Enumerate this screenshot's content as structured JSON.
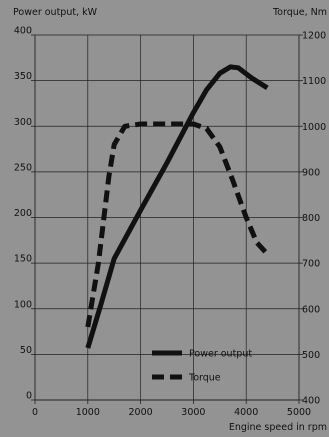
{
  "chart_data": {
    "type": "line",
    "left_axis_label": "Power output, kW",
    "right_axis_label": "Torque, Nm",
    "xlabel": "Engine speed in rpm",
    "xlim": [
      0,
      5000
    ],
    "ylim_left": [
      0,
      400
    ],
    "ylim_right": [
      400,
      1200
    ],
    "x_ticks": [
      0,
      1000,
      2000,
      3000,
      4000,
      5000
    ],
    "y_ticks_left": [
      0,
      50,
      100,
      150,
      200,
      250,
      300,
      350,
      400
    ],
    "y_ticks_right": [
      400,
      500,
      600,
      700,
      800,
      900,
      1000,
      1100,
      1200
    ],
    "grid": true,
    "legend_position": "bottom-center",
    "series": [
      {
        "name": "Power output",
        "axis": "left",
        "style": "solid",
        "color": "#111111",
        "points": [
          [
            1000,
            57
          ],
          [
            1250,
            105
          ],
          [
            1500,
            155
          ],
          [
            2000,
            208
          ],
          [
            2500,
            260
          ],
          [
            3000,
            315
          ],
          [
            3250,
            340
          ],
          [
            3500,
            358
          ],
          [
            3700,
            365
          ],
          [
            3850,
            364
          ],
          [
            4100,
            353
          ],
          [
            4400,
            342
          ]
        ]
      },
      {
        "name": "Torque",
        "axis": "right",
        "style": "dashed",
        "color": "#111111",
        "points": [
          [
            1000,
            560
          ],
          [
            1200,
            700
          ],
          [
            1400,
            890
          ],
          [
            1500,
            960
          ],
          [
            1700,
            1000
          ],
          [
            2000,
            1005
          ],
          [
            2500,
            1005
          ],
          [
            3000,
            1005
          ],
          [
            3250,
            995
          ],
          [
            3500,
            955
          ],
          [
            3750,
            880
          ],
          [
            4000,
            800
          ],
          [
            4200,
            745
          ],
          [
            4400,
            720
          ]
        ]
      }
    ]
  }
}
